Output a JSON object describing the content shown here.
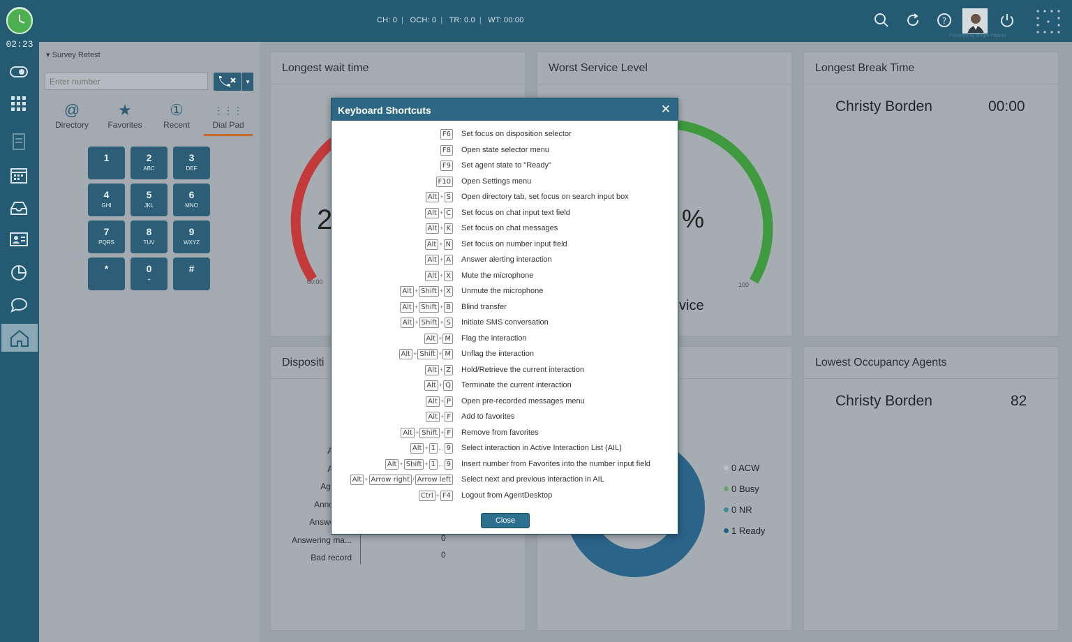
{
  "topbar": {
    "stats": [
      "CH: 0",
      "OCH: 0",
      "TR: 0.0",
      "WT: 00:00"
    ],
    "powered_by": "Powered by Bright Pattern",
    "icons": [
      "search-icon",
      "refresh-icon",
      "help-icon",
      "power-icon",
      "apps-grid-icon"
    ]
  },
  "rail": {
    "time": "02:23",
    "icons": [
      "toggle-icon",
      "apps-icon",
      "document-icon",
      "calendar-icon",
      "inbox-icon",
      "contact-card-icon",
      "pie-chart-icon",
      "chat-icon",
      "home-icon"
    ]
  },
  "dialer": {
    "survey_label": "Survey Retest",
    "input_placeholder": "Enter number",
    "tabs": [
      {
        "label": "Directory",
        "icon": "@"
      },
      {
        "label": "Favorites",
        "icon": "★"
      },
      {
        "label": "Recent",
        "icon": "①"
      },
      {
        "label": "Dial Pad",
        "icon": "⋮⋮⋮"
      }
    ],
    "keys": [
      {
        "d": "1",
        "l": ""
      },
      {
        "d": "2",
        "l": "ABC"
      },
      {
        "d": "3",
        "l": "DEF"
      },
      {
        "d": "4",
        "l": "GHI"
      },
      {
        "d": "5",
        "l": "JKL"
      },
      {
        "d": "6",
        "l": "MNO"
      },
      {
        "d": "7",
        "l": "PQRS"
      },
      {
        "d": "8",
        "l": "TUV"
      },
      {
        "d": "9",
        "l": "WXYZ"
      },
      {
        "d": "*",
        "l": ""
      },
      {
        "d": "0",
        "l": "+"
      },
      {
        "d": "#",
        "l": ""
      }
    ]
  },
  "dashboard": {
    "longest_wait": {
      "title": "Longest wait time",
      "value_partial": "2",
      "min_label": "00:00"
    },
    "worst_service": {
      "title": "Worst Service Level",
      "value_partial": "%",
      "max_label": "100",
      "sub_partial": "vice"
    },
    "longest_break": {
      "title": "Longest Break Time",
      "agent": "Christy Borden",
      "value": "00:00"
    },
    "dispositions": {
      "title": "Dispositi",
      "rows": [
        "Aband",
        "Add to",
        "Agent fa",
        "Announce",
        "Answer pro",
        "Answering ma...",
        "Bad record"
      ],
      "values": [
        "0",
        "0"
      ]
    },
    "occupancy": {
      "legend": [
        {
          "label": "0 ACW",
          "color": "#b9c1c5"
        },
        {
          "label": "0 Busy",
          "color": "#6ba36f"
        },
        {
          "label": "0 NR",
          "color": "#3e8a9a"
        },
        {
          "label": "1 Ready",
          "color": "#245f85"
        }
      ]
    },
    "lowest_occupancy": {
      "title": "Lowest Occupancy Agents",
      "agent": "Christy Borden",
      "value": "82"
    }
  },
  "dialog": {
    "title": "Keyboard Shortcuts",
    "close_label": "Close",
    "shortcuts": [
      {
        "keys": [
          "F6"
        ],
        "desc": "Set focus on disposition selector"
      },
      {
        "keys": [
          "F8"
        ],
        "desc": "Open state selector menu"
      },
      {
        "keys": [
          "F9"
        ],
        "desc": "Set agent state to \"Ready\""
      },
      {
        "keys": [
          "F10"
        ],
        "desc": "Open Settings menu"
      },
      {
        "keys": [
          "Alt",
          "S"
        ],
        "desc": "Open directory tab, set focus on search input box"
      },
      {
        "keys": [
          "Alt",
          "C"
        ],
        "desc": "Set focus on chat input text field"
      },
      {
        "keys": [
          "Alt",
          "K"
        ],
        "desc": "Set focus on chat messages"
      },
      {
        "keys": [
          "Alt",
          "N"
        ],
        "desc": "Set focus on number input field"
      },
      {
        "keys": [
          "Alt",
          "A"
        ],
        "desc": "Answer alerting interaction"
      },
      {
        "keys": [
          "Alt",
          "X"
        ],
        "desc": "Mute the microphone"
      },
      {
        "keys": [
          "Alt",
          "Shift",
          "X"
        ],
        "desc": "Unmute the microphone"
      },
      {
        "keys": [
          "Alt",
          "Shift",
          "B"
        ],
        "desc": "Blind transfer"
      },
      {
        "keys": [
          "Alt",
          "Shift",
          "S"
        ],
        "desc": "Initiate SMS conversation"
      },
      {
        "keys": [
          "Alt",
          "M"
        ],
        "desc": "Flag the interaction"
      },
      {
        "keys": [
          "Alt",
          "Shift",
          "M"
        ],
        "desc": "Unflag the interaction"
      },
      {
        "keys": [
          "Alt",
          "Z"
        ],
        "desc": "Hold/Retrieve the current interaction"
      },
      {
        "keys": [
          "Alt",
          "Q"
        ],
        "desc": "Terminate the current interaction"
      },
      {
        "keys": [
          "Alt",
          "P"
        ],
        "desc": "Open pre-recorded messages menu"
      },
      {
        "keys": [
          "Alt",
          "F"
        ],
        "desc": "Add to favorites"
      },
      {
        "keys": [
          "Alt",
          "Shift",
          "F"
        ],
        "desc": "Remove from favorites"
      },
      {
        "keys": [
          "Alt",
          "1",
          "...",
          "9"
        ],
        "desc": "Select interaction in Active Interaction List (AIL)"
      },
      {
        "keys": [
          "Alt",
          "Shift",
          "1",
          "...",
          "9"
        ],
        "desc": "Insert number from Favorites into the number input field"
      },
      {
        "keys": [
          "Alt",
          "Arrow right",
          "/",
          "Arrow left"
        ],
        "desc": "Select next and previous interaction in AIL"
      },
      {
        "keys": [
          "Ctrl",
          "F4"
        ],
        "desc": "Logout from AgentDesktop"
      }
    ]
  }
}
